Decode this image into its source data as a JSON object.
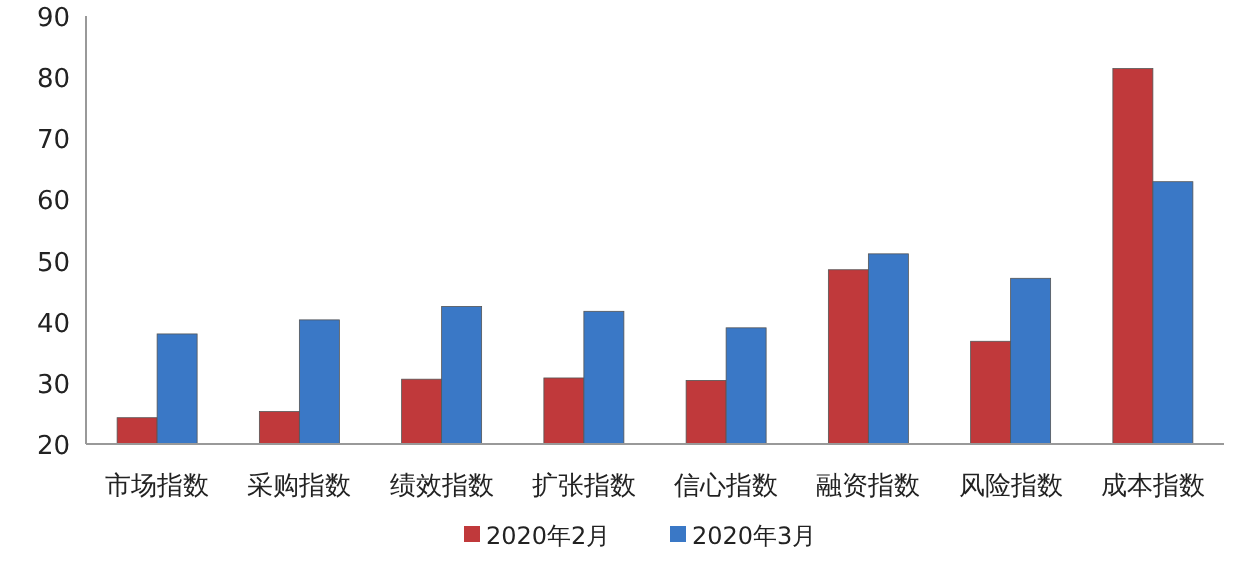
{
  "chart_data": {
    "type": "bar",
    "categories": [
      "市场指数",
      "采购指数",
      "绩效指数",
      "扩张指数",
      "信心指数",
      "融资指数",
      "风险指数",
      "成本指数"
    ],
    "series": [
      {
        "name": "2020年2月",
        "color": "#c0393b",
        "values": [
          24.3,
          25.3,
          30.6,
          30.8,
          30.4,
          48.5,
          36.8,
          81.4
        ]
      },
      {
        "name": "2020年3月",
        "color": "#3a78c6",
        "values": [
          38.0,
          40.3,
          42.5,
          41.7,
          39.0,
          51.1,
          47.1,
          62.9
        ]
      }
    ],
    "ylim": [
      20,
      90
    ],
    "yticks": [
      20,
      30,
      40,
      50,
      60,
      70,
      80,
      90
    ],
    "grid": false,
    "legend": "bottom"
  }
}
